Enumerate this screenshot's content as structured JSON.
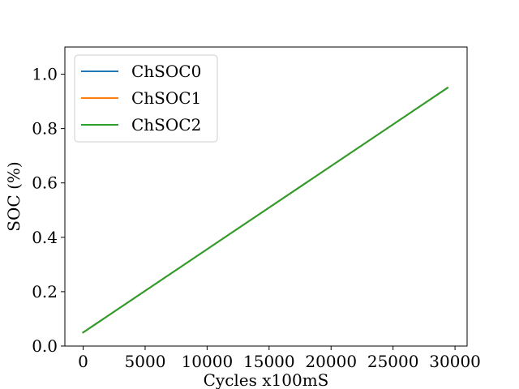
{
  "chart_data": {
    "type": "line",
    "xlabel": "Cycles x100mS",
    "ylabel": "SOC (%)",
    "xlim": [
      -1475,
      30975
    ],
    "ylim": [
      0.0,
      1.1
    ],
    "xticks": [
      0,
      5000,
      10000,
      15000,
      20000,
      25000,
      30000
    ],
    "xtick_labels": [
      "0",
      "5000",
      "10000",
      "15000",
      "20000",
      "25000",
      "30000"
    ],
    "yticks": [
      0.0,
      0.2,
      0.4,
      0.6,
      0.8,
      1.0
    ],
    "ytick_labels": [
      "0.0",
      "0.2",
      "0.4",
      "0.6",
      "0.8",
      "1.0"
    ],
    "grid": false,
    "legend_position": "top-left",
    "series": [
      {
        "name": "ChSOC0",
        "color": "#1f77b4",
        "x": [
          0,
          29400
        ],
        "y": [
          0.05,
          0.95
        ]
      },
      {
        "name": "ChSOC1",
        "color": "#ff7f0e",
        "x": [
          0,
          29400
        ],
        "y": [
          0.05,
          0.95
        ]
      },
      {
        "name": "ChSOC2",
        "color": "#2ca02c",
        "x": [
          0,
          29400
        ],
        "y": [
          0.05,
          0.95
        ]
      }
    ]
  }
}
